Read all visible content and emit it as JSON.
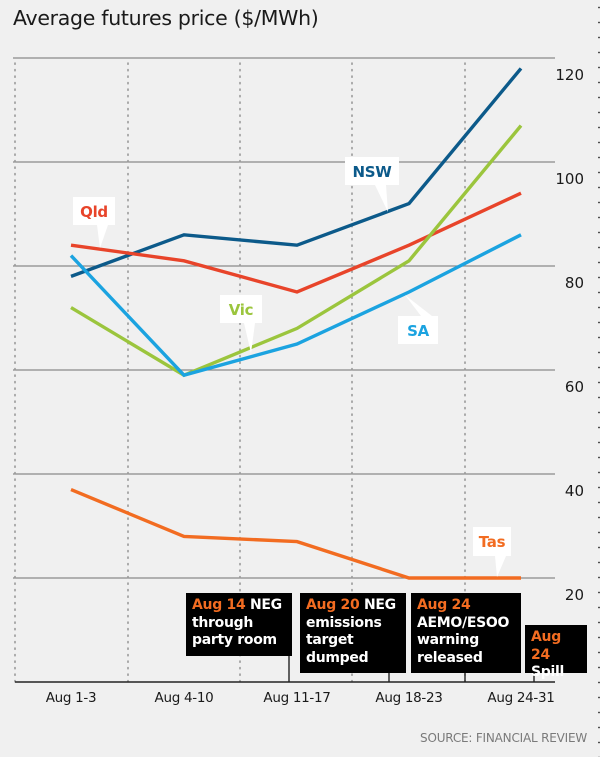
{
  "chart_data": {
    "type": "line",
    "title": "Average futures price ($/MWh)",
    "xlabel": "",
    "ylabel": "$/MWh",
    "categories": [
      "Aug 1-3",
      "Aug 4-10",
      "Aug 11-17",
      "Aug 18-23",
      "Aug 24-31"
    ],
    "ylim": [
      0,
      120
    ],
    "yticks": [
      20,
      40,
      60,
      80,
      100,
      120
    ],
    "y_axis_side": "right",
    "grid": true,
    "series": [
      {
        "name": "NSW",
        "color": "#0c5a8a",
        "values": [
          78,
          86,
          84,
          92,
          118
        ]
      },
      {
        "name": "Qld",
        "color": "#e8442a",
        "values": [
          84,
          81,
          75,
          84,
          94
        ]
      },
      {
        "name": "Vic",
        "color": "#9bc53d",
        "values": [
          72,
          59,
          68,
          81,
          107
        ]
      },
      {
        "name": "SA",
        "color": "#1ba3e0",
        "values": [
          82,
          59,
          65,
          75,
          86
        ]
      },
      {
        "name": "Tas",
        "color": "#f26c21",
        "values": [
          37,
          28,
          27,
          20,
          20
        ]
      }
    ],
    "series_labels": [
      {
        "series": "Qld",
        "text": "Qld",
        "position": "above Aug 1-3"
      },
      {
        "series": "NSW",
        "text": "NSW",
        "position": "above Aug 11-17 to Aug 18-23"
      },
      {
        "series": "Vic",
        "text": "Vic",
        "position": "above Aug 4-10 to Aug 11-17"
      },
      {
        "series": "SA",
        "text": "SA",
        "position": "below Aug 18-23"
      },
      {
        "series": "Tas",
        "text": "Tas",
        "position": "above Aug 24-31"
      }
    ],
    "annotations": [
      {
        "date": "Aug 14",
        "text": "NEG",
        "lines": [
          "through",
          "party room"
        ]
      },
      {
        "date": "Aug 20",
        "text": "NEG",
        "lines": [
          "emissions",
          "target",
          "dumped"
        ]
      },
      {
        "date": "Aug 24",
        "text": "",
        "lines": [
          "AEMO/ESOO",
          "warning",
          "released"
        ]
      },
      {
        "date": "Aug 24",
        "text": "",
        "lines": [
          "Spill"
        ]
      }
    ],
    "source": "SOURCE: FINANCIAL REVIEW"
  }
}
